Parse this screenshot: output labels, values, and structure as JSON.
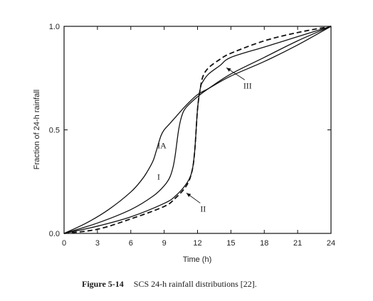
{
  "chart_data": {
    "type": "line",
    "title": "",
    "xlabel": "Time (h)",
    "ylabel": "Fraction of 24-h rainfall",
    "xlim": [
      0,
      24
    ],
    "ylim": [
      0,
      1
    ],
    "xticks": [
      0,
      3,
      6,
      9,
      12,
      15,
      18,
      21,
      24
    ],
    "xtick_labels": [
      "0",
      "3",
      "6",
      "9",
      "12",
      "15",
      "18",
      "21",
      "24"
    ],
    "yticks": [
      0,
      0.5,
      1
    ],
    "ytick_labels": [
      "0.0",
      "0.5",
      "1.0"
    ],
    "grid": false,
    "series": [
      {
        "name": "IA",
        "style": "solid",
        "x": [
          0,
          2,
          4,
          6,
          7,
          7.5,
          8,
          8.3,
          8.7,
          9,
          9.5,
          10,
          11,
          12,
          13,
          15,
          18,
          21,
          24
        ],
        "y": [
          0,
          0.05,
          0.115,
          0.2,
          0.26,
          0.3,
          0.35,
          0.4,
          0.47,
          0.5,
          0.53,
          0.56,
          0.62,
          0.67,
          0.7,
          0.76,
          0.83,
          0.91,
          1.0
        ]
      },
      {
        "name": "I",
        "style": "solid",
        "x": [
          0,
          3,
          6,
          8,
          9,
          9.5,
          9.8,
          10,
          10.3,
          10.6,
          11,
          12,
          13,
          15,
          18,
          21,
          24
        ],
        "y": [
          0,
          0.05,
          0.115,
          0.18,
          0.23,
          0.27,
          0.32,
          0.38,
          0.5,
          0.57,
          0.61,
          0.66,
          0.7,
          0.77,
          0.85,
          0.93,
          1.0
        ]
      },
      {
        "name": "II",
        "style": "solid",
        "x": [
          0,
          3,
          6,
          9,
          10,
          11,
          11.5,
          11.75,
          12,
          12.25,
          12.5,
          13,
          14,
          15,
          18,
          21,
          24
        ],
        "y": [
          0,
          0.035,
          0.08,
          0.145,
          0.18,
          0.24,
          0.3,
          0.4,
          0.6,
          0.7,
          0.735,
          0.77,
          0.81,
          0.85,
          0.9,
          0.95,
          1.0
        ]
      },
      {
        "name": "III",
        "style": "dashed",
        "x": [
          0,
          3,
          6,
          9,
          10,
          11,
          11.5,
          11.75,
          12,
          12.25,
          12.5,
          13,
          14,
          15,
          18,
          21,
          24
        ],
        "y": [
          0,
          0.02,
          0.07,
          0.13,
          0.17,
          0.23,
          0.3,
          0.4,
          0.6,
          0.7,
          0.76,
          0.8,
          0.84,
          0.87,
          0.93,
          0.97,
          1.0
        ]
      }
    ],
    "annotations": [
      {
        "text": "IA",
        "x": 8.8,
        "y": 0.41,
        "pointer": false
      },
      {
        "text": "I",
        "x": 8.5,
        "y": 0.26,
        "pointer": false
      },
      {
        "text": "II",
        "x": 12.5,
        "y": 0.105,
        "pointer": true,
        "target": [
          11.0,
          0.195
        ]
      },
      {
        "text": "III",
        "x": 16.5,
        "y": 0.7,
        "pointer": true,
        "target": [
          14.6,
          0.8
        ]
      }
    ]
  },
  "caption": {
    "label": "Figure 5-14",
    "text": "SCS 24-h rainfall distributions [22]."
  }
}
